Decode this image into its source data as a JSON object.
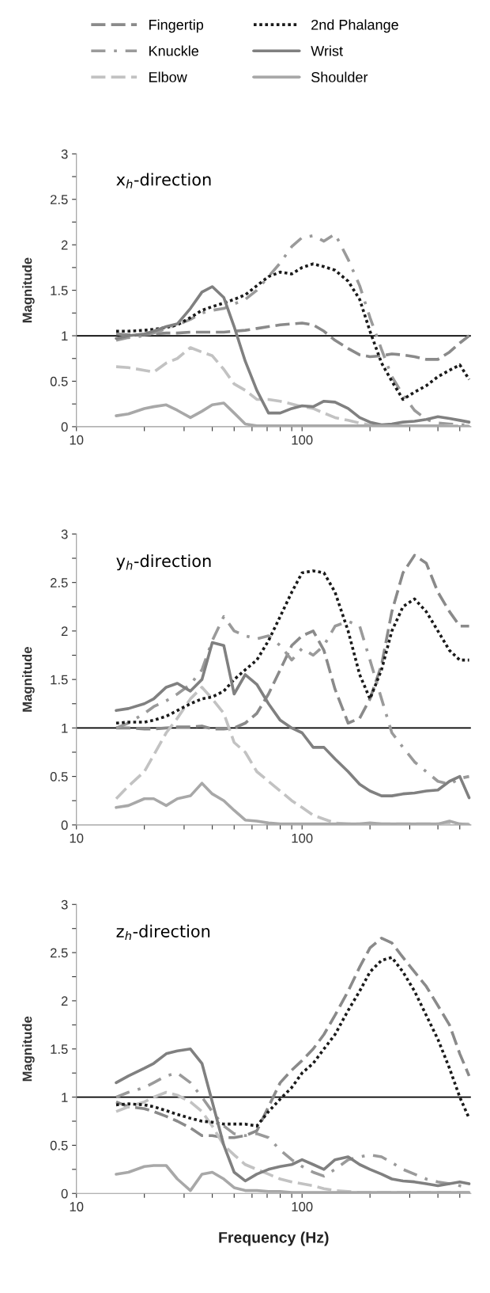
{
  "chart_data": [
    {
      "type": "line",
      "title": "x$_{h}$-direction",
      "ylabel": "Magnitude",
      "legend": "top",
      "log": "x",
      "grid": false,
      "xlim": [
        10,
        560
      ],
      "xticks": [
        10,
        {
          "value": 20,
          "label": null
        },
        {
          "value": 30,
          "label": null
        },
        {
          "value": 40,
          "label": null
        },
        {
          "value": 50,
          "label": null
        },
        {
          "value": 60,
          "label": null
        },
        {
          "value": 70,
          "label": null
        },
        {
          "value": 80,
          "label": null
        },
        {
          "value": 90,
          "label": null
        },
        100,
        {
          "value": 200,
          "label": null
        },
        {
          "value": 300,
          "label": null
        },
        {
          "value": 400,
          "label": null
        },
        {
          "value": 500,
          "label": null
        }
      ],
      "ylim": [
        0,
        3
      ],
      "yticks": [
        0,
        {
          "value": 0.25,
          "label": null
        },
        0.5,
        {
          "value": 0.75,
          "label": null
        },
        1,
        {
          "value": 1.25,
          "label": null
        },
        1.5,
        {
          "value": 1.75,
          "label": null
        },
        2,
        {
          "value": 2.25,
          "label": null
        },
        2.5,
        {
          "value": 2.75,
          "label": null
        },
        3
      ],
      "ref_lines": [
        {
          "axis": "y",
          "value": 1,
          "color": "#000000"
        }
      ],
      "x": [
        15,
        17,
        20,
        22,
        25,
        28,
        32,
        36,
        40,
        45,
        50,
        56,
        63,
        71,
        80,
        90,
        100,
        112,
        125,
        140,
        160,
        180,
        200,
        225,
        250,
        280,
        315,
        355,
        400,
        450,
        500,
        550
      ],
      "series": [
        {
          "name": "Fingertip",
          "color": "#8a8a8a",
          "line_style": "dashed",
          "values": [
            1.02,
            1.01,
            1.01,
            1.02,
            1.03,
            1.03,
            1.04,
            1.04,
            1.04,
            1.04,
            1.05,
            1.06,
            1.08,
            1.1,
            1.12,
            1.13,
            1.14,
            1.12,
            1.05,
            0.95,
            0.86,
            0.79,
            0.77,
            0.78,
            0.8,
            0.79,
            0.77,
            0.74,
            0.74,
            0.82,
            0.92,
            1.0
          ]
        },
        {
          "name": "Knuckle",
          "color": "#9a9a9a",
          "line_style": "dashdot",
          "values": [
            0.95,
            0.98,
            1.0,
            1.03,
            1.08,
            1.12,
            1.18,
            1.25,
            1.28,
            1.3,
            1.35,
            1.4,
            1.5,
            1.65,
            1.8,
            1.98,
            2.08,
            2.1,
            2.04,
            2.12,
            1.84,
            1.55,
            1.2,
            0.85,
            0.55,
            0.35,
            0.18,
            0.08,
            0.04,
            0.03,
            0.02,
            0.02
          ]
        },
        {
          "name": "Elbow",
          "color": "#c2c2c2",
          "line_style": "dashed",
          "values": [
            0.66,
            0.65,
            0.62,
            0.6,
            0.7,
            0.75,
            0.87,
            0.82,
            0.78,
            0.63,
            0.47,
            0.4,
            0.3,
            0.3,
            0.28,
            0.25,
            0.22,
            0.2,
            0.15,
            0.1,
            0.07,
            0.04,
            0.02,
            0.01,
            0.01,
            0.01,
            0.01,
            0.01,
            0.01,
            0.01,
            0.01,
            0.01
          ]
        },
        {
          "name": "2nd Phalange",
          "color": "#1a1a1a",
          "line_style": "dotted",
          "values": [
            1.05,
            1.05,
            1.06,
            1.07,
            1.09,
            1.12,
            1.2,
            1.28,
            1.32,
            1.36,
            1.4,
            1.45,
            1.55,
            1.65,
            1.7,
            1.68,
            1.75,
            1.79,
            1.76,
            1.72,
            1.6,
            1.4,
            1.05,
            0.7,
            0.5,
            0.3,
            0.38,
            0.45,
            0.55,
            0.62,
            0.68,
            0.52
          ]
        },
        {
          "name": "Wrist",
          "color": "#808080",
          "line_style": "solid",
          "values": [
            0.97,
            1.0,
            1.02,
            1.05,
            1.1,
            1.13,
            1.3,
            1.48,
            1.54,
            1.42,
            1.1,
            0.72,
            0.4,
            0.15,
            0.15,
            0.2,
            0.23,
            0.22,
            0.28,
            0.27,
            0.2,
            0.1,
            0.05,
            0.02,
            0.03,
            0.05,
            0.06,
            0.08,
            0.11,
            0.09,
            0.07,
            0.05
          ]
        },
        {
          "name": "Shoulder",
          "color": "#a8a8a8",
          "line_style": "solid",
          "values": [
            0.12,
            0.14,
            0.2,
            0.22,
            0.24,
            0.18,
            0.1,
            0.17,
            0.24,
            0.26,
            0.15,
            0.03,
            0.01,
            0.01,
            0.01,
            0.01,
            0.01,
            0.01,
            0.01,
            0.01,
            0.01,
            0.01,
            0.01,
            0.01,
            0.01,
            0.01,
            0.01,
            0.01,
            0.01,
            0.0,
            0.0,
            0.0
          ]
        }
      ]
    },
    {
      "type": "line",
      "title": "y$_{h}$-direction",
      "ylabel": "Magnitude",
      "log": "x",
      "grid": false,
      "xlim": [
        10,
        560
      ],
      "xticks": [
        10,
        {
          "value": 20,
          "label": null
        },
        {
          "value": 30,
          "label": null
        },
        {
          "value": 40,
          "label": null
        },
        {
          "value": 50,
          "label": null
        },
        {
          "value": 60,
          "label": null
        },
        {
          "value": 70,
          "label": null
        },
        {
          "value": 80,
          "label": null
        },
        {
          "value": 90,
          "label": null
        },
        100,
        {
          "value": 200,
          "label": null
        },
        {
          "value": 300,
          "label": null
        },
        {
          "value": 400,
          "label": null
        },
        {
          "value": 500,
          "label": null
        }
      ],
      "ylim": [
        0,
        3
      ],
      "yticks": [
        0,
        {
          "value": 0.25,
          "label": null
        },
        0.5,
        {
          "value": 0.75,
          "label": null
        },
        1,
        {
          "value": 1.25,
          "label": null
        },
        1.5,
        {
          "value": 1.75,
          "label": null
        },
        2,
        {
          "value": 2.25,
          "label": null
        },
        2.5,
        {
          "value": 2.75,
          "label": null
        },
        3
      ],
      "ref_lines": [
        {
          "axis": "y",
          "value": 1,
          "color": "#000000"
        }
      ],
      "x": [
        15,
        17,
        20,
        22,
        25,
        28,
        32,
        36,
        40,
        45,
        50,
        56,
        63,
        71,
        80,
        90,
        100,
        112,
        125,
        140,
        160,
        180,
        200,
        225,
        250,
        280,
        315,
        355,
        400,
        450,
        500,
        550
      ],
      "series": [
        {
          "color": "#8a8a8a",
          "line_style": "dashed",
          "values": [
            1.0,
            1.0,
            0.99,
            0.99,
            1.0,
            1.01,
            1.01,
            1.02,
            0.99,
            0.99,
            1.0,
            1.05,
            1.15,
            1.35,
            1.6,
            1.85,
            1.95,
            2.0,
            1.8,
            1.4,
            1.05,
            1.1,
            1.3,
            1.65,
            2.2,
            2.6,
            2.78,
            2.7,
            2.4,
            2.2,
            2.05,
            2.05
          ]
        },
        {
          "color": "#9a9a9a",
          "line_style": "dashdot",
          "values": [
            1.0,
            1.05,
            1.15,
            1.22,
            1.28,
            1.35,
            1.45,
            1.6,
            1.9,
            2.15,
            2.0,
            1.95,
            1.92,
            1.95,
            1.85,
            1.7,
            1.82,
            1.75,
            1.85,
            2.05,
            2.1,
            2.05,
            1.7,
            1.3,
            0.95,
            0.8,
            0.65,
            0.55,
            0.45,
            0.42,
            0.48,
            0.5
          ]
        },
        {
          "color": "#c2c2c2",
          "line_style": "dashed",
          "values": [
            0.27,
            0.4,
            0.55,
            0.72,
            0.95,
            1.1,
            1.3,
            1.42,
            1.3,
            1.15,
            0.85,
            0.75,
            0.55,
            0.45,
            0.35,
            0.25,
            0.18,
            0.1,
            0.06,
            0.02,
            0.01,
            0.01,
            0.01,
            0.01,
            0.01,
            0.01,
            0.01,
            0.01,
            0.01,
            0.01,
            0.01,
            0.01
          ]
        },
        {
          "color": "#1a1a1a",
          "line_style": "dotted",
          "values": [
            1.05,
            1.06,
            1.06,
            1.08,
            1.12,
            1.18,
            1.25,
            1.3,
            1.32,
            1.38,
            1.5,
            1.6,
            1.7,
            1.9,
            2.15,
            2.4,
            2.6,
            2.62,
            2.6,
            2.4,
            2.0,
            1.55,
            1.3,
            1.6,
            2.0,
            2.25,
            2.33,
            2.2,
            2.0,
            1.8,
            1.7,
            1.7
          ]
        },
        {
          "color": "#808080",
          "line_style": "solid",
          "values": [
            1.18,
            1.2,
            1.25,
            1.3,
            1.42,
            1.46,
            1.38,
            1.5,
            1.88,
            1.85,
            1.35,
            1.55,
            1.45,
            1.25,
            1.08,
            1.0,
            0.95,
            0.8,
            0.8,
            0.68,
            0.55,
            0.42,
            0.35,
            0.3,
            0.3,
            0.32,
            0.33,
            0.35,
            0.36,
            0.45,
            0.5,
            0.28
          ]
        },
        {
          "color": "#a8a8a8",
          "line_style": "solid",
          "values": [
            0.18,
            0.2,
            0.27,
            0.27,
            0.2,
            0.27,
            0.3,
            0.43,
            0.32,
            0.25,
            0.15,
            0.05,
            0.04,
            0.02,
            0.01,
            0.01,
            0.01,
            0.01,
            0.01,
            0.01,
            0.01,
            0.01,
            0.02,
            0.01,
            0.01,
            0.01,
            0.01,
            0.01,
            0.01,
            0.04,
            0.01,
            0.0
          ]
        }
      ]
    },
    {
      "type": "line",
      "title": "z$_{h}$-direction",
      "ylabel": "Magnitude",
      "xlabel": "Frequency (Hz)",
      "log": "x",
      "grid": false,
      "xlim": [
        10,
        560
      ],
      "xticks": [
        10,
        {
          "value": 20,
          "label": null
        },
        {
          "value": 30,
          "label": null
        },
        {
          "value": 40,
          "label": null
        },
        {
          "value": 50,
          "label": null
        },
        {
          "value": 60,
          "label": null
        },
        {
          "value": 70,
          "label": null
        },
        {
          "value": 80,
          "label": null
        },
        {
          "value": 90,
          "label": null
        },
        100,
        {
          "value": 200,
          "label": null
        },
        {
          "value": 300,
          "label": null
        },
        {
          "value": 400,
          "label": null
        },
        {
          "value": 500,
          "label": null
        }
      ],
      "ylim": [
        0,
        3
      ],
      "yticks": [
        0,
        {
          "value": 0.25,
          "label": null
        },
        0.5,
        {
          "value": 0.75,
          "label": null
        },
        1,
        {
          "value": 1.25,
          "label": null
        },
        1.5,
        {
          "value": 1.75,
          "label": null
        },
        2,
        {
          "value": 2.25,
          "label": null
        },
        2.5,
        {
          "value": 2.75,
          "label": null
        },
        3
      ],
      "ref_lines": [
        {
          "axis": "y",
          "value": 1,
          "color": "#000000"
        }
      ],
      "x": [
        15,
        17,
        20,
        22,
        25,
        28,
        32,
        36,
        40,
        45,
        50,
        56,
        63,
        71,
        80,
        90,
        100,
        112,
        125,
        140,
        160,
        180,
        200,
        225,
        250,
        280,
        315,
        355,
        400,
        450,
        500,
        550
      ],
      "series": [
        {
          "color": "#8a8a8a",
          "line_style": "dashed",
          "values": [
            0.95,
            0.9,
            0.88,
            0.85,
            0.8,
            0.75,
            0.68,
            0.6,
            0.6,
            0.58,
            0.58,
            0.6,
            0.65,
            0.9,
            1.15,
            1.28,
            1.38,
            1.5,
            1.65,
            1.85,
            2.1,
            2.35,
            2.55,
            2.65,
            2.6,
            2.45,
            2.3,
            2.15,
            1.95,
            1.75,
            1.45,
            1.22
          ]
        },
        {
          "color": "#9a9a9a",
          "line_style": "dashdot",
          "values": [
            1.0,
            1.05,
            1.1,
            1.15,
            1.22,
            1.25,
            1.15,
            1.0,
            0.85,
            0.7,
            0.62,
            0.6,
            0.62,
            0.58,
            0.45,
            0.35,
            0.28,
            0.22,
            0.18,
            0.25,
            0.35,
            0.38,
            0.4,
            0.38,
            0.32,
            0.25,
            0.2,
            0.15,
            0.12,
            0.1,
            0.08,
            0.06
          ]
        },
        {
          "color": "#c2c2c2",
          "line_style": "dashed",
          "values": [
            0.85,
            0.9,
            0.95,
            1.0,
            1.05,
            1.02,
            0.95,
            0.85,
            0.7,
            0.5,
            0.4,
            0.3,
            0.25,
            0.2,
            0.15,
            0.12,
            0.1,
            0.08,
            0.05,
            0.03,
            0.02,
            0.01,
            0.01,
            0.01,
            0.01,
            0.01,
            0.01,
            0.01,
            0.01,
            0.01,
            0.01,
            0.01
          ]
        },
        {
          "color": "#1a1a1a",
          "line_style": "dotted",
          "values": [
            0.92,
            0.93,
            0.92,
            0.9,
            0.86,
            0.82,
            0.78,
            0.75,
            0.74,
            0.72,
            0.72,
            0.72,
            0.7,
            0.85,
            0.98,
            1.1,
            1.25,
            1.35,
            1.5,
            1.65,
            1.9,
            2.1,
            2.3,
            2.42,
            2.45,
            2.3,
            2.1,
            1.85,
            1.6,
            1.3,
            1.0,
            0.78
          ]
        },
        {
          "color": "#808080",
          "line_style": "solid",
          "values": [
            1.15,
            1.22,
            1.3,
            1.35,
            1.45,
            1.48,
            1.5,
            1.35,
            0.95,
            0.5,
            0.22,
            0.13,
            0.2,
            0.25,
            0.28,
            0.3,
            0.35,
            0.3,
            0.25,
            0.35,
            0.38,
            0.3,
            0.25,
            0.2,
            0.15,
            0.13,
            0.12,
            0.1,
            0.08,
            0.1,
            0.12,
            0.1
          ]
        },
        {
          "color": "#a8a8a8",
          "line_style": "solid",
          "values": [
            0.2,
            0.22,
            0.28,
            0.29,
            0.29,
            0.15,
            0.03,
            0.2,
            0.22,
            0.15,
            0.06,
            0.03,
            0.03,
            0.02,
            0.02,
            0.01,
            0.01,
            0.01,
            0.01,
            0.01,
            0.01,
            0.01,
            0.01,
            0.01,
            0.01,
            0.01,
            0.01,
            0.01,
            0.01,
            0.01,
            0.01,
            0.01
          ]
        }
      ]
    }
  ]
}
